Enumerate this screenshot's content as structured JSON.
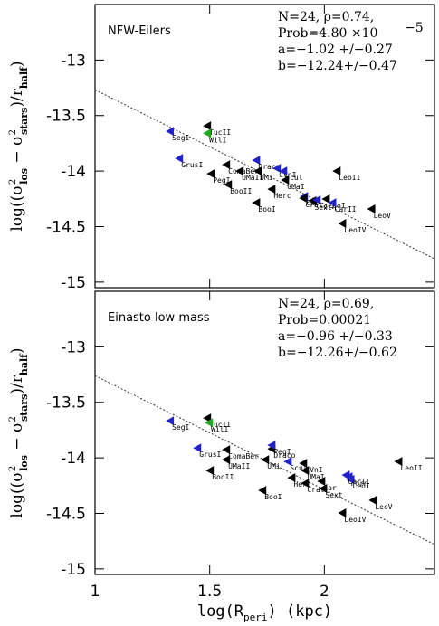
{
  "chart_data": [
    {
      "type": "scatter",
      "panel_label": "NFW-Eilers",
      "annotations": [
        "N=24, ρ=0.74,",
        "Prob=4.80   ×10",
        "a=−1.02 +/−0.27",
        "b=−12.24+/−0.47"
      ],
      "annotation_superscript": "−5",
      "ylabel": [
        "log((σ",
        "2",
        "los",
        " − σ",
        "2",
        "stars",
        ")/r",
        "half",
        ")"
      ],
      "xlim": [
        1,
        2.48
      ],
      "xticks": [
        1,
        1.5,
        2
      ],
      "ylim": [
        -15.05,
        -12.5
      ],
      "yticks": [
        -13,
        -13.5,
        -14,
        -14.5,
        -15
      ],
      "x": [
        1.328,
        1.49,
        1.49,
        1.368,
        1.506,
        1.581,
        1.573,
        1.632,
        1.711,
        1.704,
        1.794,
        1.822,
        1.83,
        1.771,
        1.704,
        1.913,
        1.949,
        1.968,
        2.008,
        2.036,
        2.055,
        2.206,
        2.079,
        1.909
      ],
      "values": [
        -13.642,
        -13.593,
        -13.659,
        -13.886,
        -14.024,
        -14.122,
        -13.943,
        -14.0,
        -14.0,
        -13.902,
        -13.976,
        -14.0,
        -14.081,
        -14.163,
        -14.285,
        -14.228,
        -14.268,
        -14.26,
        -14.252,
        -14.285,
        -14.0,
        -14.341,
        -14.472,
        -14.244
      ],
      "labels": [
        "SegI",
        "TucII",
        "WilI",
        "GrusI",
        "PegI",
        "BooII",
        "ComaBer",
        "UMaII",
        "UMi",
        "Draco",
        "CVnI",
        "Scul",
        "UMaI",
        "Herc",
        "BooI",
        "Car",
        "Sext",
        "Forn",
        "LeoI",
        "CarII",
        "LeoII",
        "LeoV",
        "LeoIV",
        "Crat"
      ],
      "colors": [
        "#2222cc",
        "#000000",
        "#22aa22",
        "#2222cc",
        "#000000",
        "#000000",
        "#000000",
        "#000000",
        "#000000",
        "#2222cc",
        "#2222cc",
        "#2222cc",
        "#000000",
        "#000000",
        "#000000",
        "#2222cc",
        "#000000",
        "#2222cc",
        "#000000",
        "#2222cc",
        "#000000",
        "#000000",
        "#000000",
        "#000000"
      ],
      "fit_x": [
        1,
        2.48
      ],
      "fit_y": [
        -13.268,
        -14.79
      ]
    },
    {
      "type": "scatter",
      "panel_label": "Einasto low mass",
      "annotations": [
        "N=24, ρ=0.69,",
        "Prob=0.00021",
        "a=−0.96 +/−0.33",
        "b=−12.26+/−0.62"
      ],
      "ylabel": [
        "log((σ",
        "2",
        "los",
        " − σ",
        "2",
        "stars",
        ")/r",
        "half",
        ")"
      ],
      "xlabel": [
        "log(R",
        "peri",
        ") (kpc)"
      ],
      "xlim": [
        1,
        2.48
      ],
      "xticks": [
        1,
        1.5,
        2
      ],
      "ylim": [
        -15.05,
        -12.5
      ],
      "yticks": [
        -13,
        -13.5,
        -14,
        -14.5,
        -15
      ],
      "x": [
        1.328,
        1.49,
        1.498,
        1.447,
        1.573,
        1.771,
        1.573,
        1.743,
        1.771,
        1.502,
        1.842,
        1.917,
        1.909,
        1.858,
        1.731,
        1.988,
        1.996,
        2.107,
        2.115,
        2.095,
        2.324,
        2.213,
        2.079,
        1.917
      ],
      "values": [
        -13.667,
        -13.642,
        -13.683,
        -13.911,
        -13.927,
        -13.919,
        -14.016,
        -14.016,
        -13.886,
        -14.114,
        -14.033,
        -14.114,
        -14.049,
        -14.179,
        -14.293,
        -14.211,
        -14.276,
        -14.171,
        -14.195,
        -14.155,
        -14.033,
        -14.382,
        -14.496,
        -14.228
      ],
      "labels": [
        "SegI",
        "TucII",
        "WilI",
        "GrusI",
        "ComaBer",
        "Draco",
        "UMaII",
        "UMi",
        "PegI",
        "BooII",
        "Scul",
        "UMaI",
        "CVnI",
        "Herc",
        "BooI",
        "Car",
        "Sext",
        "Forn",
        "LeoI",
        "CarII",
        "LeoII",
        "LeoV",
        "LeoIV",
        "Crat"
      ],
      "colors": [
        "#2222cc",
        "#000000",
        "#22aa22",
        "#2222cc",
        "#000000",
        "#000000",
        "#000000",
        "#000000",
        "#2222cc",
        "#000000",
        "#2222cc",
        "#000000",
        "#000000",
        "#000000",
        "#000000",
        "#000000",
        "#000000",
        "#2222cc",
        "#2222cc",
        "#2222cc",
        "#000000",
        "#000000",
        "#000000",
        "#000000"
      ],
      "fit_x": [
        1,
        2.48
      ],
      "fit_y": [
        -13.26,
        -14.78
      ]
    }
  ]
}
